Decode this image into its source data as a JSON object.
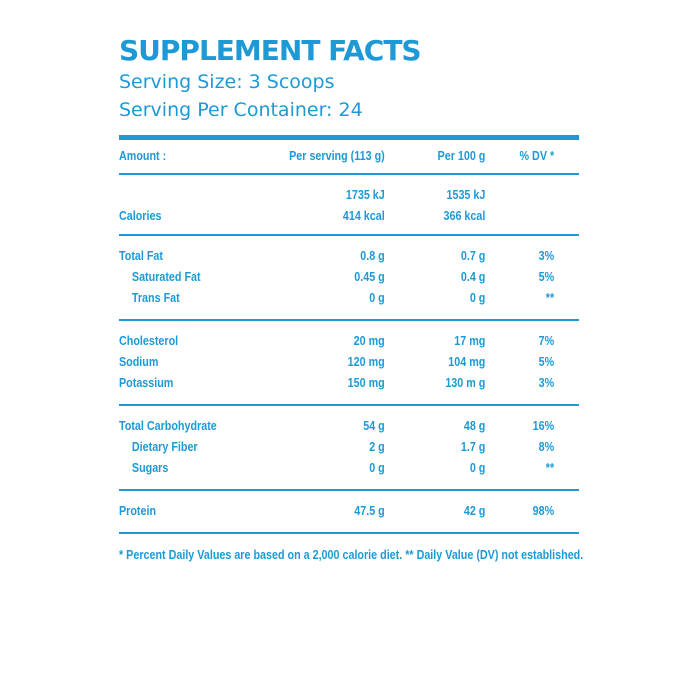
{
  "title": "SUPPLEMENT FACTS",
  "serving_size": "Serving Size: 3 Scoops",
  "serving_per_container": "Serving Per Container: 24",
  "colors": {
    "accent": "#1d9ad6",
    "background": "#ffffff"
  },
  "header": {
    "amount": "Amount :",
    "per_serving": "Per serving (113 g)",
    "per_100g": "Per 100 g",
    "dv": "% DV *"
  },
  "energy": {
    "kj_serving": "1735 kJ",
    "kj_100g": "1535 kJ",
    "label": "Calories",
    "kcal_serving": "414 kcal",
    "kcal_100g": "366 kcal"
  },
  "fat_group": [
    {
      "label": "Total Fat",
      "serving": "0.8 g",
      "per100": "0.7 g",
      "dv": "3%"
    },
    {
      "label": "Saturated Fat",
      "serving": "0.45 g",
      "per100": "0.4 g",
      "dv": "5%"
    },
    {
      "label": "Trans Fat",
      "serving": "0 g",
      "per100": "0 g",
      "dv": "**"
    }
  ],
  "mineral_group": [
    {
      "label": "Cholesterol",
      "serving": "20 mg",
      "per100": "17 mg",
      "dv": "7%"
    },
    {
      "label": "Sodium",
      "serving": "120 mg",
      "per100": "104 mg",
      "dv": "5%"
    },
    {
      "label": "Potassium",
      "serving": "150 mg",
      "per100": "130 m g",
      "dv": "3%"
    }
  ],
  "carb_group": [
    {
      "label": "Total Carbohydrate",
      "serving": "54 g",
      "per100": "48 g",
      "dv": "16%"
    },
    {
      "label": "Dietary Fiber",
      "serving": "2 g",
      "per100": "1.7 g",
      "dv": "8%"
    },
    {
      "label": "Sugars",
      "serving": "0 g",
      "per100": "0 g",
      "dv": "**"
    }
  ],
  "protein": {
    "label": "Protein",
    "serving": "47.5 g",
    "per100": "42 g",
    "dv": "98%"
  },
  "footnote": "* Percent Daily Values are based on a 2,000 calorie diet. ** Daily Value (DV) not established."
}
